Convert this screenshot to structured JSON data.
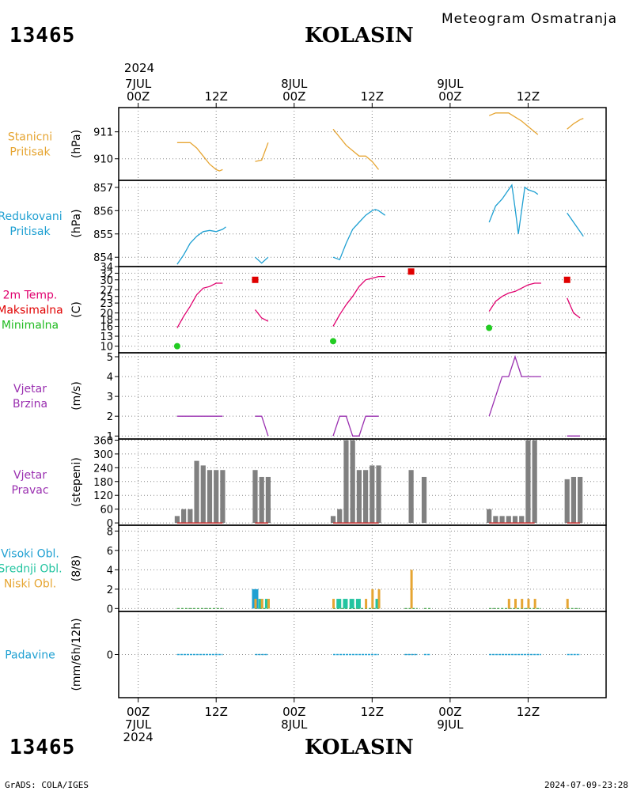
{
  "header": {
    "station_id": "13465",
    "station_name": "KOLASIN",
    "subtitle": "Meteogram Osmatranja"
  },
  "footer": {
    "left": "GrADS: COLA/IGES",
    "right": "2024-07-09-23:28"
  },
  "time_axis": {
    "top_year": "2024",
    "top_labels": [
      {
        "lines": [
          "7JUL",
          "00Z"
        ],
        "hour": 0
      },
      {
        "lines": [
          "12Z"
        ],
        "hour": 12
      },
      {
        "lines": [
          "8JUL",
          "00Z"
        ],
        "hour": 24
      },
      {
        "lines": [
          "12Z"
        ],
        "hour": 36
      },
      {
        "lines": [
          "9JUL",
          "00Z"
        ],
        "hour": 48
      },
      {
        "lines": [
          "12Z"
        ],
        "hour": 60
      }
    ],
    "bottom_labels": [
      {
        "lines": [
          "00Z",
          "7JUL",
          "2024"
        ],
        "hour": 0
      },
      {
        "lines": [
          "12Z"
        ],
        "hour": 12
      },
      {
        "lines": [
          "00Z",
          "8JUL"
        ],
        "hour": 24
      },
      {
        "lines": [
          "12Z"
        ],
        "hour": 36
      },
      {
        "lines": [
          "00Z",
          "9JUL"
        ],
        "hour": 48
      },
      {
        "lines": [
          "12Z"
        ],
        "hour": 60
      }
    ]
  },
  "panels": {
    "pressure": {
      "labels": [
        "Stanicni",
        "Pritisak"
      ],
      "unit": "(hPa)",
      "color": "#e6a532"
    },
    "reduced": {
      "labels": [
        "Redukovani",
        "Pritisak"
      ],
      "unit": "(hPa)",
      "color": "#1fa0d2"
    },
    "temp": {
      "labels": [
        "2m Temp.",
        "Maksimalna",
        "Minimalna"
      ],
      "colors": [
        "#e0006e",
        "#e00000",
        "#22bb22"
      ],
      "unit": "(C)"
    },
    "wspeed": {
      "labels": [
        "Vjetar",
        "Brzina"
      ],
      "unit": "(m/s)",
      "color": "#9a2fb0"
    },
    "wdir": {
      "labels": [
        "Vjetar",
        "Pravac"
      ],
      "unit": "(stepeni)",
      "color": "#9a2fb0"
    },
    "clouds": {
      "labels": [
        "Visoki Obl.",
        "Srednji Obl.",
        "Niski Obl."
      ],
      "colors": [
        "#1fa0d2",
        "#22c4a0",
        "#e6a532"
      ],
      "unit": "(8/8)"
    },
    "precip": {
      "labels": [
        "Padavine"
      ],
      "unit": "(mm/6h/12h)",
      "color": "#1fa0d2"
    }
  },
  "chart_data": [
    {
      "type": "line",
      "name": "pressure",
      "ylim": [
        909.2,
        911.9
      ],
      "yticks": [
        910,
        911
      ],
      "segments": [
        [
          [
            6,
            910.6
          ],
          [
            8,
            910.6
          ],
          [
            9,
            910.4
          ],
          [
            10,
            910.1
          ],
          [
            11,
            909.8
          ],
          [
            12,
            909.6
          ],
          [
            12.5,
            909.55
          ],
          [
            13,
            909.6
          ]
        ],
        [
          [
            18,
            909.9
          ],
          [
            19,
            909.95
          ],
          [
            20,
            910.6
          ]
        ],
        [
          [
            30,
            911.1
          ],
          [
            31,
            910.8
          ],
          [
            32,
            910.5
          ],
          [
            33,
            910.3
          ],
          [
            34,
            910.1
          ],
          [
            35,
            910.1
          ],
          [
            36,
            909.9
          ],
          [
            37,
            909.6
          ]
        ],
        [
          [
            54,
            911.6
          ],
          [
            55,
            911.7
          ],
          [
            57,
            911.7
          ],
          [
            58,
            911.55
          ],
          [
            59,
            911.4
          ],
          [
            60,
            911.2
          ],
          [
            61,
            911.0
          ],
          [
            61.5,
            910.9
          ]
        ],
        [
          [
            66,
            911.1
          ],
          [
            67,
            911.3
          ],
          [
            68,
            911.45
          ],
          [
            68.5,
            911.5
          ]
        ]
      ],
      "color": "#e6a532"
    },
    {
      "type": "line",
      "name": "reduced",
      "ylim": [
        853.6,
        857.3
      ],
      "yticks": [
        854,
        855,
        856,
        857
      ],
      "segments": [
        [
          [
            6,
            853.7
          ],
          [
            7,
            854.1
          ],
          [
            8,
            854.6
          ],
          [
            9,
            854.9
          ],
          [
            10,
            855.1
          ],
          [
            11,
            855.15
          ],
          [
            12,
            855.1
          ],
          [
            13,
            855.2
          ],
          [
            13.5,
            855.3
          ]
        ],
        [
          [
            18,
            854.0
          ],
          [
            19,
            853.75
          ],
          [
            20,
            854.0
          ]
        ],
        [
          [
            30,
            854.0
          ],
          [
            31,
            853.9
          ],
          [
            32,
            854.6
          ],
          [
            33,
            855.2
          ],
          [
            34,
            855.5
          ],
          [
            35,
            855.8
          ],
          [
            36,
            856.0
          ],
          [
            36.5,
            856.05
          ],
          [
            37,
            856.0
          ],
          [
            38,
            855.8
          ]
        ],
        [
          [
            54,
            855.5
          ],
          [
            55,
            856.2
          ],
          [
            56,
            856.5
          ],
          [
            57,
            856.9
          ],
          [
            57.5,
            857.1
          ],
          [
            58,
            856.1
          ],
          [
            58.5,
            855.0
          ],
          [
            59,
            856.0
          ],
          [
            59.5,
            857.0
          ],
          [
            60,
            856.9
          ],
          [
            61,
            856.8
          ],
          [
            61.5,
            856.7
          ]
        ],
        [
          [
            66,
            855.9
          ],
          [
            67,
            855.5
          ],
          [
            68,
            855.1
          ],
          [
            68.5,
            854.9
          ]
        ]
      ],
      "color": "#1fa0d2"
    },
    {
      "type": "line",
      "name": "temp",
      "ylim": [
        8,
        34
      ],
      "yticks": [
        10,
        13,
        16,
        18,
        20,
        23,
        25,
        27,
        30,
        32,
        34
      ],
      "segments": [
        [
          [
            6,
            15.5
          ],
          [
            7,
            19
          ],
          [
            8,
            22
          ],
          [
            9,
            25.5
          ],
          [
            10,
            27.5
          ],
          [
            11,
            28
          ],
          [
            12,
            29
          ],
          [
            13,
            29
          ]
        ],
        [
          [
            18,
            21
          ],
          [
            19,
            18.5
          ],
          [
            20,
            17.5
          ]
        ],
        [
          [
            30,
            16
          ],
          [
            31,
            19.5
          ],
          [
            32,
            22.5
          ],
          [
            33,
            25
          ],
          [
            34,
            28
          ],
          [
            35,
            30
          ],
          [
            36,
            30.5
          ],
          [
            37,
            31
          ],
          [
            38,
            31
          ]
        ],
        [
          [
            54,
            20.5
          ],
          [
            55,
            23.5
          ],
          [
            56,
            25
          ],
          [
            57,
            26
          ],
          [
            58,
            26.5
          ],
          [
            59,
            27.5
          ],
          [
            60,
            28.5
          ],
          [
            61,
            29
          ],
          [
            62,
            29
          ]
        ],
        [
          [
            66,
            24.5
          ],
          [
            67,
            20
          ],
          [
            68,
            18.5
          ]
        ]
      ],
      "max_points": [
        [
          18,
          30
        ],
        [
          42,
          32.5
        ],
        [
          66,
          30
        ]
      ],
      "min_points": [
        [
          6,
          10
        ],
        [
          30,
          11.5
        ],
        [
          54,
          15.5
        ]
      ],
      "color": "#e0006e"
    },
    {
      "type": "line",
      "name": "wspeed",
      "ylim": [
        0.85,
        5.2
      ],
      "yticks": [
        1,
        2,
        3,
        4,
        5
      ],
      "segments": [
        [
          [
            6,
            2
          ],
          [
            13,
            2
          ]
        ],
        [
          [
            18,
            2
          ],
          [
            19,
            2
          ],
          [
            20,
            1
          ]
        ],
        [
          [
            30,
            1
          ],
          [
            31,
            2
          ],
          [
            32,
            2
          ],
          [
            33,
            1
          ],
          [
            34,
            1
          ],
          [
            35,
            2
          ],
          [
            37,
            2
          ]
        ],
        [
          [
            54,
            2
          ],
          [
            55,
            3
          ],
          [
            56,
            4
          ],
          [
            57,
            4
          ],
          [
            58,
            5
          ],
          [
            59,
            4
          ],
          [
            61,
            4
          ],
          [
            62,
            4
          ]
        ],
        [
          [
            66,
            1
          ],
          [
            68,
            1
          ]
        ]
      ],
      "color": "#9a2fb0"
    },
    {
      "type": "bar",
      "name": "wdir",
      "ylim": [
        -10,
        365
      ],
      "yticks": [
        0,
        60,
        120,
        180,
        240,
        300,
        360
      ],
      "bars": [
        [
          6,
          30
        ],
        [
          7,
          60
        ],
        [
          8,
          60
        ],
        [
          9,
          270
        ],
        [
          10,
          250
        ],
        [
          11,
          230
        ],
        [
          12,
          230
        ],
        [
          13,
          230
        ],
        [
          18,
          230
        ],
        [
          19,
          200
        ],
        [
          20,
          200
        ],
        [
          30,
          30
        ],
        [
          31,
          60
        ],
        [
          32,
          360
        ],
        [
          33,
          360
        ],
        [
          34,
          230
        ],
        [
          35,
          230
        ],
        [
          36,
          250
        ],
        [
          37,
          250
        ],
        [
          42,
          230
        ],
        [
          44,
          200
        ],
        [
          54,
          60
        ],
        [
          55,
          30
        ],
        [
          56,
          30
        ],
        [
          57,
          30
        ],
        [
          58,
          30
        ],
        [
          59,
          30
        ],
        [
          60,
          360
        ],
        [
          61,
          360
        ],
        [
          66,
          190
        ],
        [
          67,
          200
        ],
        [
          68,
          200
        ]
      ],
      "calm_segments": [
        [
          6,
          13
        ],
        [
          18,
          20
        ],
        [
          30,
          37
        ],
        [
          54,
          61
        ],
        [
          66,
          68
        ]
      ],
      "color": "#808080"
    },
    {
      "type": "bar",
      "name": "clouds",
      "ylim": [
        -0.3,
        8.6
      ],
      "yticks": [
        0,
        2,
        4,
        6,
        8
      ],
      "high": [
        [
          18,
          2
        ]
      ],
      "middle": [
        [
          19,
          1
        ],
        [
          20,
          1
        ],
        [
          31,
          1
        ],
        [
          32,
          1
        ],
        [
          33,
          1
        ],
        [
          34,
          1
        ],
        [
          37,
          1
        ]
      ],
      "low": [
        [
          18,
          1
        ],
        [
          19,
          1
        ],
        [
          20,
          1
        ],
        [
          30,
          1
        ],
        [
          35,
          1
        ],
        [
          36,
          2
        ],
        [
          37,
          2
        ],
        [
          42,
          4
        ],
        [
          57,
          1
        ],
        [
          58,
          1
        ],
        [
          59,
          1
        ],
        [
          60,
          1
        ],
        [
          61,
          1
        ],
        [
          66,
          1
        ]
      ],
      "trace_segments": [
        [
          6,
          13
        ],
        [
          18,
          20
        ],
        [
          30,
          37
        ],
        [
          41,
          43
        ],
        [
          44,
          45
        ],
        [
          54,
          62
        ],
        [
          66,
          68
        ]
      ]
    },
    {
      "type": "bar",
      "name": "precip",
      "ylim": [
        -4.5,
        4.5
      ],
      "yticks": [
        0
      ],
      "trace_segments": [
        [
          6,
          13
        ],
        [
          18,
          20
        ],
        [
          30,
          37
        ],
        [
          41,
          43
        ],
        [
          44,
          45
        ],
        [
          54,
          62
        ],
        [
          66,
          68
        ]
      ],
      "color": "#1fa0d2"
    }
  ]
}
